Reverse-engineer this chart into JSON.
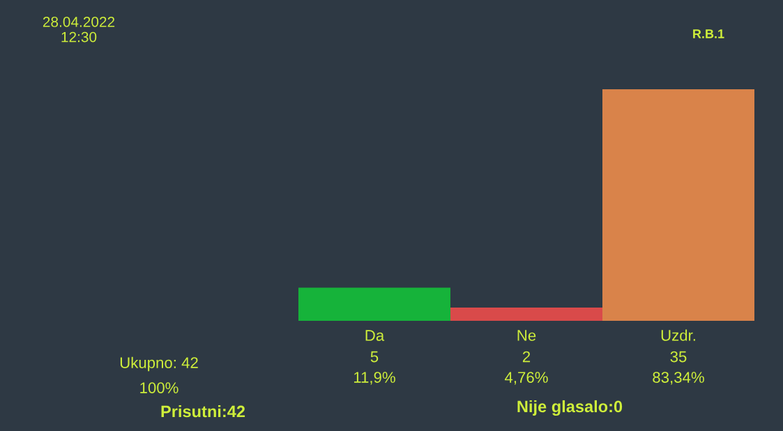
{
  "chart_data": {
    "type": "bar",
    "categories": [
      "Da",
      "Ne",
      "Uzdr."
    ],
    "values": [
      5,
      2,
      35
    ],
    "colors": [
      "#16b33a",
      "#d94a4a",
      "#d9834a"
    ],
    "value_labels": [
      "5\n11,9%",
      "2\n4,76%",
      "35\n83,34%"
    ],
    "tick_labels": "x",
    "annotations": [
      "28.04.2022\n12:30",
      "R.B.1",
      "Ukupno: 42",
      "100%",
      "Prisutni:42",
      "Nije glasalo:0"
    ]
  }
}
